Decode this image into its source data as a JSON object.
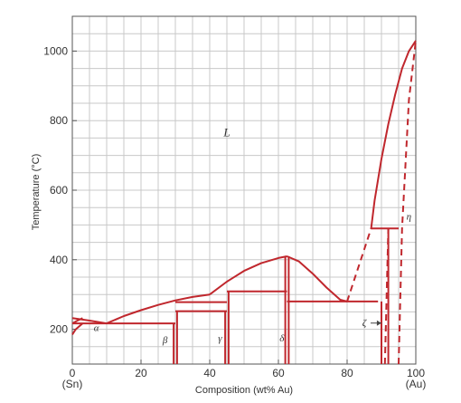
{
  "chart_data": {
    "type": "line",
    "xlabel": "Composition (wt% Au)",
    "ylabel": "Temperature (°C)",
    "xlim": [
      0,
      100
    ],
    "ylim": [
      100,
      1100
    ],
    "x_ticks": [
      "0",
      "20",
      "40",
      "60",
      "80",
      "100"
    ],
    "x_tick_values": [
      0,
      20,
      40,
      60,
      80,
      100
    ],
    "y_ticks": [
      "200",
      "400",
      "600",
      "800",
      "1000"
    ],
    "y_tick_values": [
      200,
      400,
      600,
      800,
      1000
    ],
    "x_end_labels": [
      "(Sn)",
      "(Au)"
    ],
    "grid": true,
    "line_color": "#c0272d",
    "phase_labels": [
      {
        "text": "L",
        "x": 45,
        "y": 755
      },
      {
        "text": "α",
        "x": 7,
        "y": 195
      },
      {
        "text": "β",
        "x": 27,
        "y": 160
      },
      {
        "text": "γ",
        "x": 43,
        "y": 165
      },
      {
        "text": "δ",
        "x": 61,
        "y": 165
      },
      {
        "text": "ζ",
        "x": 85,
        "y": 210
      },
      {
        "text": "η",
        "x": 98,
        "y": 515
      }
    ],
    "solid_lines": [
      {
        "name": "liquidus-left",
        "x": [
          0,
          5,
          10
        ],
        "y": [
          232,
          225,
          217
        ]
      },
      {
        "name": "liquidus-beta",
        "x": [
          10,
          15,
          20,
          25,
          30,
          35,
          40
        ],
        "y": [
          217,
          238,
          255,
          270,
          283,
          293,
          300
        ]
      },
      {
        "name": "liquidus-delta",
        "x": [
          40,
          45,
          50,
          55,
          60,
          62.5
        ],
        "y": [
          300,
          337,
          368,
          390,
          405,
          410
        ]
      },
      {
        "name": "liquidus-delta-right",
        "x": [
          62.5,
          66,
          70,
          74,
          78,
          80
        ],
        "y": [
          410,
          395,
          360,
          320,
          285,
          280
        ]
      },
      {
        "name": "liquidus-au",
        "x": [
          87,
          88,
          90,
          92,
          94,
          96,
          98,
          100
        ],
        "y": [
          490,
          570,
          690,
          790,
          875,
          950,
          1000,
          1030
        ]
      },
      {
        "name": "alpha-solvus-a",
        "x": [
          0,
          1.5,
          3
        ],
        "y": [
          217,
          225,
          232
        ]
      },
      {
        "name": "alpha-solvus-b",
        "x": [
          0,
          1,
          3
        ],
        "y": [
          185,
          200,
          217
        ]
      },
      {
        "name": "eutectic-217",
        "x": [
          0,
          30
        ],
        "y": [
          217,
          217
        ]
      },
      {
        "name": "beta-gamma-252",
        "x": [
          30,
          45
        ],
        "y": [
          252,
          252
        ]
      },
      {
        "name": "peritectic-278",
        "x": [
          30,
          45
        ],
        "y": [
          278,
          278
        ]
      },
      {
        "name": "peritectic-309",
        "x": [
          45,
          62.5
        ],
        "y": [
          309,
          309
        ]
      },
      {
        "name": "eutectic-280",
        "x": [
          62.5,
          89
        ],
        "y": [
          280,
          280
        ]
      },
      {
        "name": "peritectic-490",
        "x": [
          87,
          95
        ],
        "y": [
          490,
          490
        ]
      },
      {
        "name": "beta-left",
        "x": [
          29.5,
          29.5
        ],
        "y": [
          100,
          217
        ]
      },
      {
        "name": "beta-right",
        "x": [
          30.5,
          30.5
        ],
        "y": [
          100,
          252
        ]
      },
      {
        "name": "gamma-left",
        "x": [
          44.5,
          44.5
        ],
        "y": [
          100,
          252
        ]
      },
      {
        "name": "gamma-right",
        "x": [
          45.5,
          45.5
        ],
        "y": [
          100,
          309
        ]
      },
      {
        "name": "delta-left",
        "x": [
          62,
          62
        ],
        "y": [
          100,
          410
        ]
      },
      {
        "name": "delta-right",
        "x": [
          63,
          63
        ],
        "y": [
          100,
          410
        ]
      },
      {
        "name": "zeta-left",
        "x": [
          90,
          90
        ],
        "y": [
          100,
          280
        ]
      },
      {
        "name": "zeta-right",
        "x": [
          92,
          92
        ],
        "y": [
          100,
          490
        ]
      }
    ],
    "dashed_lines": [
      {
        "name": "liquidus-upper",
        "x": [
          80,
          87
        ],
        "y": [
          280,
          490
        ]
      },
      {
        "name": "eta-zeta",
        "x": [
          91,
          92
        ],
        "y": [
          100,
          490
        ]
      },
      {
        "name": "eta-solvus",
        "x": [
          95,
          96,
          98,
          100
        ],
        "y": [
          100,
          490,
          860,
          1030
        ]
      }
    ]
  }
}
